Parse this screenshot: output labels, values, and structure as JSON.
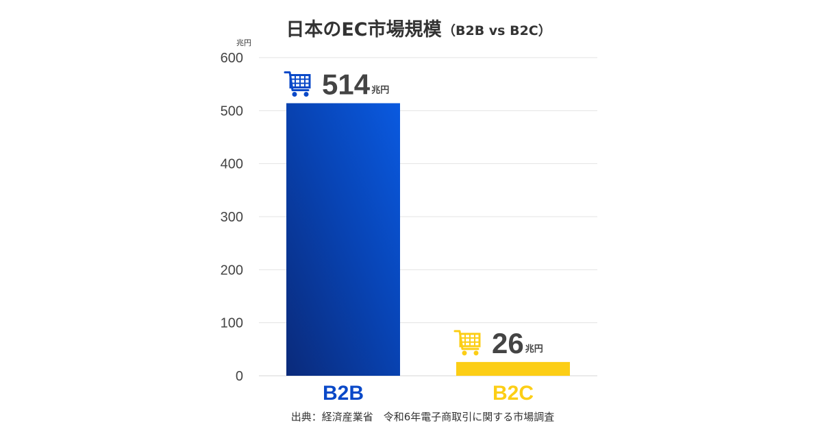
{
  "chart_data": {
    "type": "bar",
    "title": "日本のEC市場規模",
    "subtitle": "（B2B vs B2C）",
    "unit": "兆円",
    "categories": [
      "B2B",
      "B2C"
    ],
    "values": [
      514,
      26
    ],
    "value_labels": [
      "514",
      "26"
    ],
    "value_unit": "兆円",
    "ylim": [
      0,
      600
    ],
    "yticks": [
      "0",
      "100",
      "200",
      "300",
      "400",
      "500",
      "600"
    ],
    "grid": true,
    "legend": "none",
    "colors": {
      "B2B": "#0a49c8",
      "B2C": "#fcce16"
    },
    "bar_icons": [
      "cart-icon",
      "cart-icon"
    ],
    "source": "出典：経済産業省　令和6年電子商取引に関する市場調査"
  }
}
